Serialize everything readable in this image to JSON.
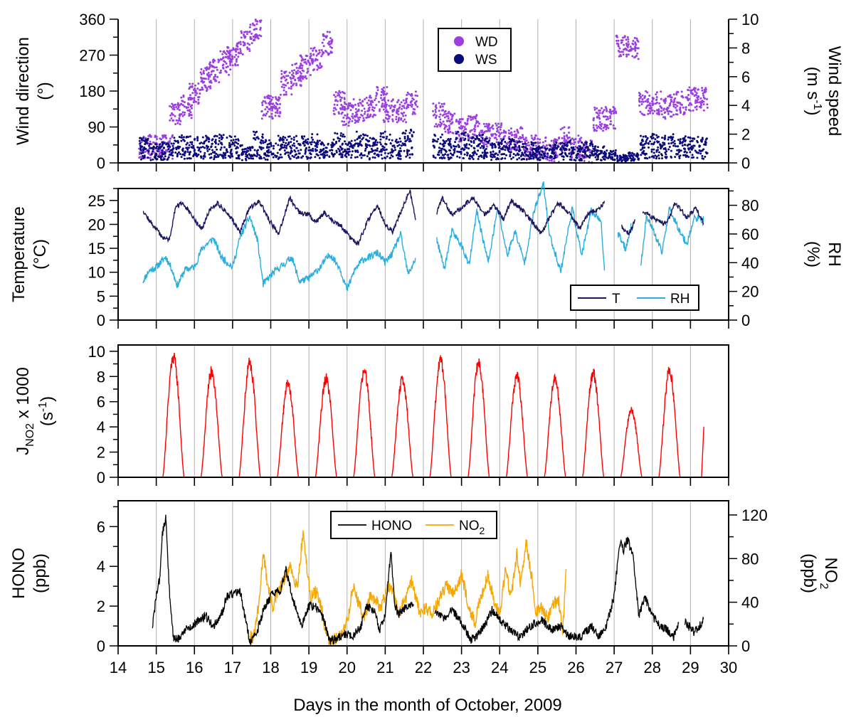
{
  "figure": {
    "xlabel": "Days in the month of October, 2009",
    "x_ticks": [
      14,
      15,
      16,
      17,
      18,
      19,
      20,
      21,
      22,
      23,
      24,
      25,
      26,
      27,
      28,
      29,
      30
    ],
    "xlim": [
      14,
      30
    ]
  },
  "chart_data": [
    {
      "type": "scatter",
      "panel": "wind",
      "ylabel_left": [
        "Wind direction",
        "(°)"
      ],
      "ylabel_right": [
        "Wind speed",
        "(m s",
        "-1",
        ")"
      ],
      "ylim_left": [
        0,
        360
      ],
      "yticks_left": [
        0,
        90,
        180,
        270,
        360
      ],
      "ylim_right": [
        0,
        10
      ],
      "yticks_right": [
        0,
        2,
        4,
        6,
        8,
        10
      ],
      "legend": {
        "placement": "top-center",
        "entries": [
          "WD",
          "WS"
        ]
      },
      "grid": "vertical",
      "colors": {
        "WD": "#9b3fe0",
        "WS": "#0a0a7a"
      },
      "series": [
        {
          "name": "WD",
          "axis": "left",
          "x": [
            14.7,
            15.0,
            15.3,
            15.5,
            15.8,
            16.0,
            16.3,
            16.5,
            16.8,
            17.0,
            17.3,
            17.6,
            17.9,
            18.1,
            18.4,
            18.7,
            18.9,
            19.2,
            19.5,
            19.8,
            20.0,
            20.3,
            20.6,
            20.9,
            21.1,
            21.4,
            21.7,
            22.4,
            22.7,
            23.0,
            23.3,
            23.6,
            23.9,
            24.2,
            24.5,
            24.8,
            25.1,
            25.4,
            25.7,
            26.0,
            26.3,
            26.6,
            26.9,
            27.2,
            27.5,
            27.8,
            28.1,
            28.4,
            28.7,
            29.0,
            29.3
          ],
          "y": [
            40,
            40,
            40,
            120,
            140,
            170,
            210,
            230,
            250,
            270,
            300,
            330,
            140,
            140,
            200,
            220,
            240,
            260,
            300,
            150,
            120,
            130,
            140,
            160,
            130,
            130,
            150,
            120,
            100,
            80,
            90,
            70,
            70,
            60,
            60,
            40,
            40,
            30,
            60,
            40,
            30,
            110,
            110,
            290,
            290,
            150,
            150,
            140,
            150,
            160,
            160
          ]
        },
        {
          "name": "WS",
          "axis": "right",
          "x": [
            14.7,
            15.0,
            15.3,
            15.6,
            15.9,
            16.2,
            16.5,
            16.8,
            17.1,
            17.4,
            17.7,
            18.0,
            18.3,
            18.6,
            18.9,
            19.2,
            19.5,
            19.8,
            20.1,
            20.4,
            20.7,
            21.0,
            21.3,
            21.6,
            22.4,
            22.7,
            23.0,
            23.3,
            23.6,
            23.9,
            24.2,
            24.5,
            24.8,
            25.1,
            25.4,
            25.7,
            26.0,
            26.3,
            26.6,
            26.9,
            27.2,
            27.5,
            27.8,
            28.1,
            28.4,
            28.7,
            29.0,
            29.3
          ],
          "y": [
            1.2,
            0.9,
            1.0,
            1.4,
            1.3,
            1.3,
            1.3,
            1.4,
            1.3,
            0.8,
            1.5,
            1.1,
            1.3,
            1.3,
            1.3,
            1.4,
            1.0,
            1.6,
            1.2,
            1.5,
            1.2,
            1.5,
            1.2,
            1.6,
            1.4,
            1.2,
            1.5,
            1.3,
            1.4,
            1.0,
            1.2,
            1.1,
            1.0,
            0.8,
            1.0,
            1.1,
            0.8,
            1.0,
            0.8,
            0.6,
            0.4,
            0.5,
            1.3,
            1.4,
            1.4,
            1.3,
            1.3,
            1.3
          ]
        }
      ]
    },
    {
      "type": "line",
      "panel": "temperature",
      "ylabel_left": [
        "Temperature",
        "(°C)"
      ],
      "ylabel_right": [
        "RH",
        "(%)"
      ],
      "ylim_left": [
        0,
        27.5
      ],
      "yticks_left": [
        0,
        5,
        10,
        15,
        20,
        25
      ],
      "ylim_right": [
        0,
        91.7
      ],
      "yticks_right": [
        0,
        20,
        40,
        60,
        80
      ],
      "legend": {
        "placement": "bottom-right",
        "entries": [
          "T",
          "RH"
        ]
      },
      "grid": "vertical",
      "colors": {
        "T": "#1a1660",
        "RH": "#2aaee0"
      },
      "series": [
        {
          "name": "T",
          "axis": "left",
          "x": [
            14.65,
            14.8,
            15.0,
            15.2,
            15.35,
            15.5,
            15.7,
            15.95,
            16.2,
            16.4,
            16.6,
            16.9,
            17.2,
            17.45,
            17.7,
            17.95,
            18.2,
            18.5,
            18.75,
            19.0,
            19.2,
            19.4,
            19.6,
            19.85,
            20.1,
            20.3,
            20.55,
            20.8,
            21.0,
            21.2,
            21.4,
            21.65,
            21.8,
            null,
            22.35,
            22.5,
            22.75,
            23.0,
            23.3,
            23.6,
            23.85,
            24.1,
            24.3,
            24.6,
            24.85,
            25.1,
            25.3,
            25.55,
            25.85,
            26.1,
            26.3,
            26.6,
            26.75,
            null,
            27.2,
            27.4,
            27.55,
            null,
            27.75,
            28.0,
            28.3,
            28.45,
            28.6,
            28.9,
            29.15,
            29.35
          ],
          "y": [
            23,
            21,
            19,
            17,
            17,
            23.5,
            24.5,
            21.5,
            19,
            23,
            24.5,
            22,
            18.5,
            23.5,
            24.8,
            21,
            18,
            25.5,
            22.5,
            22,
            20.5,
            22.5,
            21,
            19.5,
            17,
            16,
            21,
            24,
            20,
            18.5,
            22.5,
            27,
            21,
            null,
            22.5,
            25.5,
            22,
            23.5,
            25.5,
            22,
            24,
            21,
            25,
            23,
            20.5,
            18,
            21.5,
            24.5,
            22,
            19,
            22,
            23.5,
            24.5,
            null,
            19.5,
            18,
            21,
            null,
            22.5,
            21.5,
            20,
            21.5,
            24.5,
            21.5,
            23.5,
            20
          ]
        },
        {
          "name": "RH",
          "axis": "right",
          "x": [
            14.65,
            14.8,
            15.0,
            15.25,
            15.4,
            15.55,
            15.75,
            16.0,
            16.2,
            16.5,
            16.7,
            17.0,
            17.2,
            17.45,
            17.65,
            17.8,
            18.1,
            18.35,
            18.55,
            18.75,
            19.0,
            19.3,
            19.55,
            19.8,
            20.0,
            20.2,
            20.4,
            20.6,
            20.8,
            21.0,
            21.2,
            21.4,
            21.6,
            21.8,
            null,
            22.35,
            22.55,
            22.75,
            23.0,
            23.2,
            23.4,
            23.7,
            23.95,
            24.2,
            24.4,
            24.65,
            24.9,
            25.15,
            25.3,
            25.6,
            25.9,
            26.15,
            26.4,
            26.65,
            26.75,
            null,
            27.1,
            27.3,
            27.45,
            null,
            27.7,
            27.85,
            28.0,
            28.25,
            28.45,
            28.65,
            28.9,
            29.1,
            29.35
          ],
          "y": [
            27,
            34,
            37,
            44,
            36,
            24,
            35,
            37,
            50,
            57,
            44,
            37,
            58,
            72,
            56,
            25,
            34,
            39,
            44,
            27,
            29,
            37,
            46,
            37,
            21,
            35,
            42,
            44,
            47,
            40,
            47,
            60,
            32,
            43,
            null,
            56,
            36,
            62,
            52,
            38,
            76,
            40,
            78,
            45,
            62,
            40,
            76,
            95,
            60,
            34,
            78,
            45,
            76,
            70,
            34,
            null,
            60,
            50,
            66,
            null,
            38,
            73,
            64,
            47,
            78,
            66,
            53,
            71,
            70
          ]
        }
      ]
    },
    {
      "type": "line",
      "panel": "photolysis",
      "ylabel_left": [
        "J",
        "NO2",
        " x 1000",
        "(s",
        "-1",
        ")"
      ],
      "ylim_left": [
        0,
        10.5
      ],
      "yticks_left": [
        0,
        2,
        4,
        6,
        8,
        10
      ],
      "grid": "vertical",
      "colors": {
        "J": "#ff0000"
      },
      "peaks": [
        {
          "day": 15,
          "peak": 10.0
        },
        {
          "day": 16,
          "peak": 8.7
        },
        {
          "day": 17,
          "peak": 9.4
        },
        {
          "day": 18,
          "peak": 7.7
        },
        {
          "day": 19,
          "peak": 8.1
        },
        {
          "day": 20,
          "peak": 8.8
        },
        {
          "day": 21,
          "peak": 8.0
        },
        {
          "day": 22,
          "peak": 9.7
        },
        {
          "day": 23,
          "peak": 9.4
        },
        {
          "day": 24,
          "peak": 8.3
        },
        {
          "day": 25,
          "peak": 8.0
        },
        {
          "day": 26,
          "peak": 8.6
        },
        {
          "day": 27,
          "peak": 5.6
        },
        {
          "day": 28,
          "peak": 8.8
        }
      ],
      "last_value": {
        "day": 29.35,
        "value": 4.0
      }
    },
    {
      "type": "line",
      "panel": "hono",
      "ylabel_left": [
        "HONO",
        "(ppb)"
      ],
      "ylabel_right": [
        "NO",
        "2",
        "(ppb)"
      ],
      "ylim_left": [
        0,
        7.3
      ],
      "yticks_left": [
        0,
        2,
        4,
        6
      ],
      "ylim_right": [
        0,
        133
      ],
      "yticks_right": [
        0,
        40,
        80,
        120
      ],
      "legend": {
        "placement": "top-center",
        "entries": [
          "HONO",
          "NO",
          "2"
        ]
      },
      "grid": "vertical",
      "colors": {
        "HONO": "#000000",
        "NO2": "#f7a800"
      },
      "series": [
        {
          "name": "HONO",
          "axis": "left",
          "x": [
            14.9,
            15.0,
            15.1,
            15.15,
            15.25,
            15.35,
            15.45,
            15.55,
            15.75,
            15.95,
            16.1,
            16.3,
            16.5,
            16.7,
            16.85,
            17.0,
            17.2,
            17.35,
            17.45,
            17.6,
            17.85,
            18.05,
            18.25,
            18.4,
            18.6,
            18.8,
            19.0,
            19.15,
            19.25,
            19.4,
            19.55,
            19.75,
            19.95,
            20.15,
            20.35,
            20.5,
            20.7,
            20.85,
            21.0,
            21.15,
            21.25,
            21.35,
            21.55,
            21.75,
            null,
            22.3,
            22.55,
            22.75,
            23.0,
            23.25,
            23.45,
            23.6,
            23.8,
            24.05,
            24.35,
            24.55,
            24.8,
            25.1,
            25.35,
            25.6,
            25.8,
            26.1,
            26.4,
            26.6,
            26.8,
            27.0,
            27.15,
            27.25,
            27.35,
            27.5,
            27.65,
            27.8,
            28.0,
            28.2,
            28.4,
            28.55,
            28.7,
            null,
            28.85,
            29.0,
            29.1,
            29.2,
            29.35
          ],
          "y": [
            1.0,
            2.5,
            3.5,
            5.5,
            6.5,
            2.5,
            0.4,
            0.3,
            0.8,
            1.0,
            1.3,
            1.5,
            1.0,
            1.5,
            2.5,
            2.6,
            2.8,
            1.2,
            0.2,
            0.5,
            2.0,
            2.6,
            2.8,
            3.8,
            2.2,
            1.0,
            2.0,
            2.0,
            1.8,
            1.3,
            0.2,
            0.4,
            0.6,
            0.5,
            0.9,
            2.0,
            1.8,
            0.8,
            1.6,
            4.8,
            2.0,
            1.6,
            2.0,
            2.2,
            null,
            1.8,
            1.4,
            1.8,
            1.2,
            0.3,
            0.6,
            1.0,
            1.8,
            1.2,
            0.7,
            0.4,
            1.0,
            1.3,
            0.8,
            1.0,
            0.5,
            0.4,
            1.0,
            0.5,
            1.0,
            2.5,
            5.2,
            4.8,
            5.4,
            4.4,
            1.5,
            2.5,
            1.5,
            1.0,
            0.8,
            0.4,
            1.2,
            null,
            1.2,
            0.9,
            0.7,
            0.9,
            1.3
          ]
        },
        {
          "name": "NO",
          "axis": "right",
          "x": [
            17.45,
            17.55,
            17.7,
            17.8,
            17.9,
            18.05,
            18.2,
            18.35,
            18.5,
            18.7,
            18.85,
            18.95,
            19.05,
            19.2,
            19.35,
            19.45,
            19.55,
            19.65,
            19.85,
            20.05,
            20.15,
            20.3,
            20.45,
            20.6,
            20.75,
            20.9,
            21.05,
            21.2,
            21.35,
            21.5,
            21.7,
            21.9,
            22.05,
            22.25,
            22.45,
            22.6,
            22.8,
            23.0,
            23.2,
            23.35,
            23.5,
            23.7,
            23.85,
            24.0,
            24.15,
            24.3,
            24.45,
            24.55,
            24.7,
            24.85,
            24.95,
            25.1,
            25.25,
            25.4,
            25.55,
            25.65,
            25.75
          ],
          "y": [
            12,
            6,
            40,
            87,
            60,
            35,
            50,
            60,
            72,
            55,
            105,
            70,
            45,
            50,
            30,
            10,
            4,
            6,
            10,
            30,
            55,
            40,
            25,
            45,
            40,
            35,
            55,
            50,
            30,
            40,
            60,
            30,
            35,
            30,
            45,
            55,
            50,
            65,
            35,
            20,
            45,
            65,
            40,
            30,
            70,
            45,
            85,
            55,
            95,
            60,
            30,
            35,
            25,
            40,
            40,
            10,
            80
          ]
        }
      ]
    }
  ]
}
